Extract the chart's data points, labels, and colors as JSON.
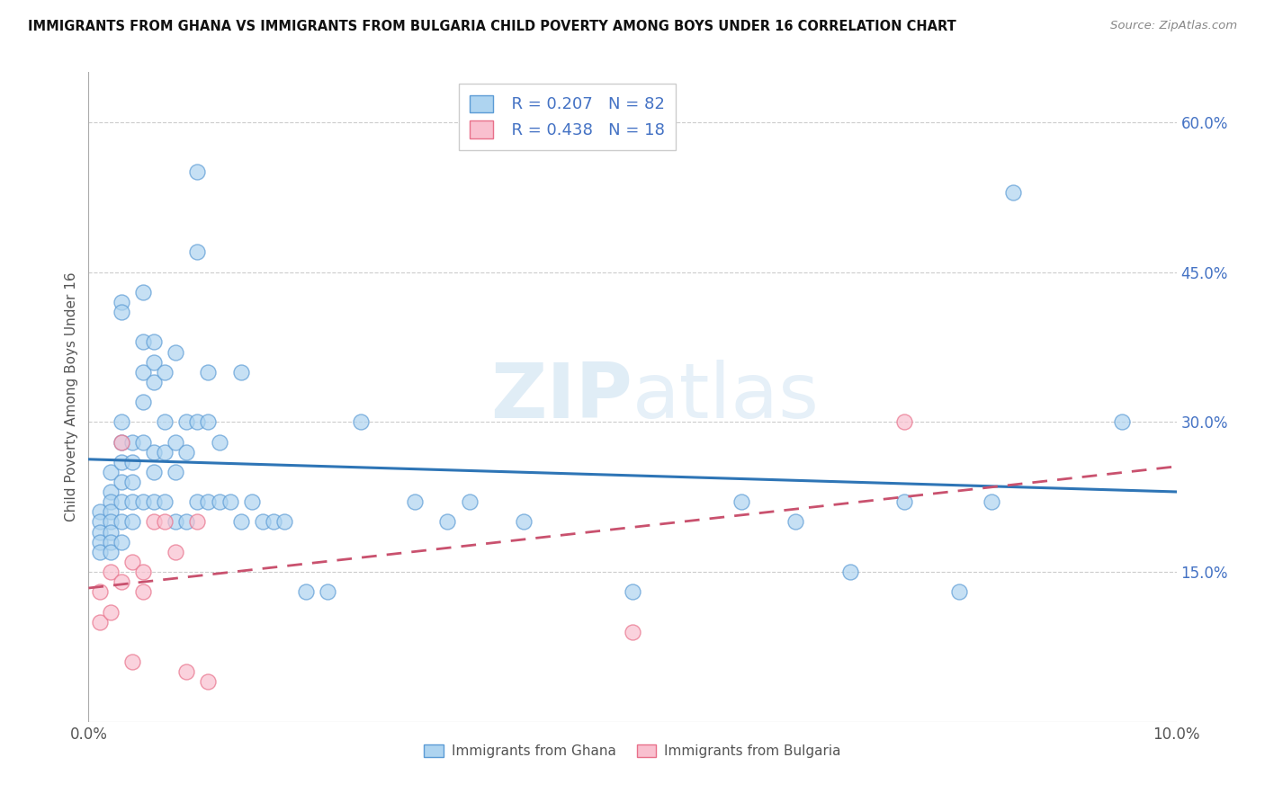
{
  "title": "IMMIGRANTS FROM GHANA VS IMMIGRANTS FROM BULGARIA CHILD POVERTY AMONG BOYS UNDER 16 CORRELATION CHART",
  "source": "Source: ZipAtlas.com",
  "ylabel": "Child Poverty Among Boys Under 16",
  "xlim": [
    0.0,
    0.1
  ],
  "ylim": [
    0.0,
    0.65
  ],
  "ghana_R": 0.207,
  "ghana_N": 82,
  "bulgaria_R": 0.438,
  "bulgaria_N": 18,
  "ghana_color": "#AED4F0",
  "bulgaria_color": "#F9C0CF",
  "ghana_edge_color": "#5B9BD5",
  "bulgaria_edge_color": "#E8708A",
  "ghana_line_color": "#2E75B6",
  "bulgaria_line_color": "#C9516E",
  "watermark_color": "#D8E8F0",
  "right_tick_color": "#4472C4",
  "ghana_x": [
    0.001,
    0.001,
    0.001,
    0.001,
    0.001,
    0.002,
    0.002,
    0.002,
    0.002,
    0.002,
    0.002,
    0.002,
    0.002,
    0.003,
    0.003,
    0.003,
    0.003,
    0.003,
    0.003,
    0.003,
    0.003,
    0.003,
    0.004,
    0.004,
    0.004,
    0.004,
    0.004,
    0.005,
    0.005,
    0.005,
    0.005,
    0.005,
    0.005,
    0.006,
    0.006,
    0.006,
    0.006,
    0.006,
    0.006,
    0.007,
    0.007,
    0.007,
    0.007,
    0.008,
    0.008,
    0.008,
    0.008,
    0.009,
    0.009,
    0.009,
    0.01,
    0.01,
    0.01,
    0.01,
    0.011,
    0.011,
    0.011,
    0.012,
    0.012,
    0.013,
    0.014,
    0.014,
    0.015,
    0.016,
    0.017,
    0.018,
    0.02,
    0.022,
    0.025,
    0.03,
    0.033,
    0.035,
    0.04,
    0.05,
    0.06,
    0.065,
    0.07,
    0.075,
    0.08,
    0.083,
    0.085,
    0.095
  ],
  "ghana_y": [
    0.21,
    0.2,
    0.19,
    0.18,
    0.17,
    0.25,
    0.23,
    0.22,
    0.21,
    0.2,
    0.19,
    0.18,
    0.17,
    0.42,
    0.41,
    0.3,
    0.28,
    0.26,
    0.24,
    0.22,
    0.2,
    0.18,
    0.28,
    0.26,
    0.24,
    0.22,
    0.2,
    0.43,
    0.38,
    0.35,
    0.32,
    0.28,
    0.22,
    0.38,
    0.36,
    0.34,
    0.27,
    0.25,
    0.22,
    0.35,
    0.3,
    0.27,
    0.22,
    0.37,
    0.28,
    0.25,
    0.2,
    0.3,
    0.27,
    0.2,
    0.55,
    0.47,
    0.3,
    0.22,
    0.35,
    0.3,
    0.22,
    0.28,
    0.22,
    0.22,
    0.35,
    0.2,
    0.22,
    0.2,
    0.2,
    0.2,
    0.13,
    0.13,
    0.3,
    0.22,
    0.2,
    0.22,
    0.2,
    0.13,
    0.22,
    0.2,
    0.15,
    0.22,
    0.13,
    0.22,
    0.53,
    0.3
  ],
  "bulgaria_x": [
    0.001,
    0.001,
    0.002,
    0.002,
    0.003,
    0.003,
    0.004,
    0.004,
    0.005,
    0.005,
    0.006,
    0.007,
    0.008,
    0.009,
    0.01,
    0.011,
    0.05,
    0.075
  ],
  "bulgaria_y": [
    0.13,
    0.1,
    0.15,
    0.11,
    0.28,
    0.14,
    0.16,
    0.06,
    0.15,
    0.13,
    0.2,
    0.2,
    0.17,
    0.05,
    0.2,
    0.04,
    0.09,
    0.3
  ]
}
